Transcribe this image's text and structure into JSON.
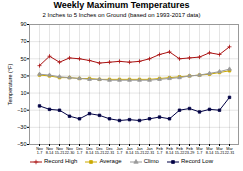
{
  "chart_data": {
    "type": "line",
    "title": "Weekly Maximum Temperatures",
    "subtitle": "2 Inches to 5 Inches on Ground (based on 1993-2017 data)",
    "ylabel": "Temperature (°F)",
    "categories": [
      "Nov\n1-7",
      "Nov\n8-14",
      "Nov\n15-21",
      "Nov\n22-30",
      "Dec\n1-7",
      "Dec\n8-14",
      "Dec\n15-21",
      "Dec\n22-31",
      "Jan\n1-7",
      "Jan\n8-14",
      "Jan\n15-21",
      "Jan\n22-31",
      "Feb\n1-7",
      "Feb\n8-14",
      "Feb\n15-22",
      "Feb\n23-29",
      "Mar\n1-7",
      "Mar\n8-14",
      "Mar\n15-21",
      "Mar\n22-31"
    ],
    "series": [
      {
        "name": "Record High",
        "color": "#aa1111",
        "marker": "plus",
        "values": [
          42,
          53,
          46,
          51,
          50,
          48,
          45,
          46,
          47,
          46,
          47,
          50,
          55,
          58,
          50,
          51,
          52,
          57,
          55,
          64
        ]
      },
      {
        "name": "Average",
        "color": "#ccaa00",
        "marker": "square",
        "values": [
          31,
          30,
          28,
          28,
          27,
          27,
          26,
          26,
          26,
          26,
          26,
          26,
          27,
          28,
          29,
          30,
          31,
          32,
          34,
          36
        ]
      },
      {
        "name": "Climo",
        "color": "#999999",
        "marker": "triangle",
        "values": [
          32,
          31,
          29,
          28,
          27,
          26,
          26,
          25,
          25,
          25,
          25,
          25,
          26,
          27,
          28,
          30,
          31,
          33,
          35,
          38
        ]
      },
      {
        "name": "Record Low",
        "color": "#000044",
        "marker": "square",
        "values": [
          -5,
          -9,
          -10,
          -17,
          -20,
          -14,
          -16,
          -20,
          -22,
          -21,
          -22,
          -20,
          -18,
          -20,
          -10,
          -8,
          -12,
          -9,
          -10,
          5
        ]
      }
    ],
    "ylim": [
      -50,
      90
    ],
    "yticks": [
      -50,
      -30,
      -10,
      10,
      30,
      50,
      70,
      90
    ],
    "grid": true,
    "legend": "bottom"
  }
}
